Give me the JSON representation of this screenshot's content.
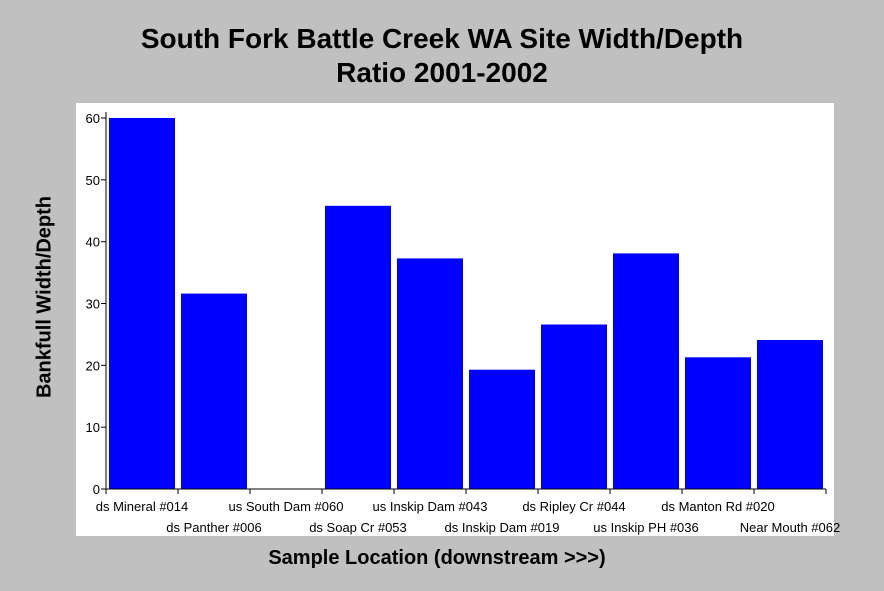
{
  "chart_data": {
    "type": "bar",
    "title_lines": [
      "South Fork Battle Creek WA Site Width/Depth",
      "Ratio 2001-2002"
    ],
    "xlabel": "Sample Location (downstream >>>)",
    "ylabel": "Bankfull Width/Depth",
    "categories": [
      "ds Mineral #014",
      "ds Panther #006",
      "us South Dam #060",
      "ds Soap Cr #053",
      "us Inskip Dam #043",
      "ds Inskip Dam #019",
      "ds Ripley Cr #044",
      "us Inskip PH #036",
      "ds Manton Rd #020",
      "Near Mouth #062"
    ],
    "values": [
      60.0,
      31.6,
      null,
      45.8,
      37.3,
      19.3,
      26.6,
      38.1,
      21.3,
      24.1
    ],
    "ylim": [
      0,
      60
    ],
    "yticks": [
      0,
      10,
      20,
      30,
      40,
      50,
      60
    ],
    "bar_color": "#0000ff",
    "grid": false,
    "legend": "none"
  }
}
